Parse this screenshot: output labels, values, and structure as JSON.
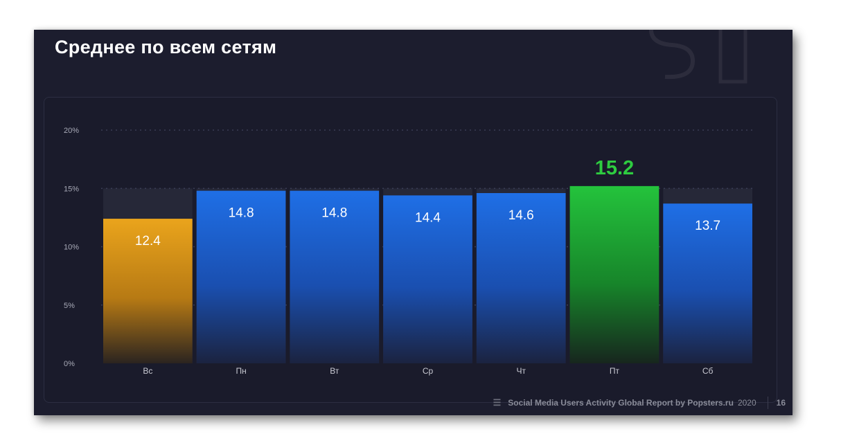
{
  "title": "Среднее по всем сетям",
  "footer": {
    "text": "Social Media Users Activity Global Report by Popsters.ru",
    "year": "2020",
    "page": "16",
    "menu_icon": "list-icon"
  },
  "colors": {
    "background": "#1c1d2e",
    "min_bar": "#e8a21a",
    "max_bar": "#22c23a",
    "normal_bar": "#1f6fe0",
    "max_label": "#2ecc40"
  },
  "chart_data": {
    "type": "bar",
    "categories": [
      "Вс",
      "Пн",
      "Вт",
      "Ср",
      "Чт",
      "Пт",
      "Сб"
    ],
    "values": [
      12.4,
      14.8,
      14.8,
      14.4,
      14.6,
      15.2,
      13.7
    ],
    "value_labels": [
      "12.4",
      "14.8",
      "14.8",
      "14.4",
      "14.6",
      "15.2",
      "13.7"
    ],
    "yticks": [
      "0%",
      "5%",
      "10%",
      "15%",
      "20%"
    ],
    "ytick_values": [
      0,
      5,
      10,
      15,
      20
    ],
    "ylim": [
      0,
      20
    ],
    "highlight": {
      "min_index": 0,
      "max_index": 5
    },
    "grid": true,
    "title": "",
    "xlabel": "",
    "ylabel": ""
  }
}
